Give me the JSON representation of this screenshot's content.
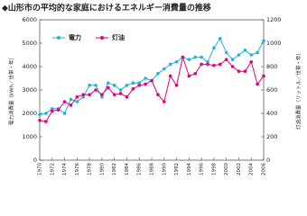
{
  "chart_data": {
    "type": "line",
    "title": "◆山形市の平均的な家庭におけるエネルギー消費量の推移",
    "y_label": "電力消費量（kWh／世帯・年）",
    "y2_label": "灯油消費量（リットル／世帯・年）",
    "x": [
      1970,
      1971,
      1972,
      1973,
      1974,
      1975,
      1976,
      1977,
      1978,
      1979,
      1980,
      1981,
      1982,
      1983,
      1984,
      1985,
      1986,
      1987,
      1988,
      1989,
      1990,
      1991,
      1992,
      1993,
      1994,
      1995,
      1996,
      1997,
      1998,
      1999,
      2000,
      2001,
      2002,
      2003,
      2004,
      2005,
      2006
    ],
    "xlim": [
      1970,
      2006
    ],
    "xticks": [
      1970,
      1972,
      1974,
      1976,
      1978,
      1980,
      1982,
      1984,
      1986,
      1988,
      1990,
      1992,
      1994,
      1996,
      1998,
      2000,
      2002,
      2004,
      2006
    ],
    "ylim": [
      0,
      6000
    ],
    "yticks": [
      0,
      1000,
      2000,
      3000,
      4000,
      5000,
      6000
    ],
    "y2lim": [
      0,
      1200
    ],
    "y2ticks": [
      0,
      200,
      400,
      600,
      800,
      1000,
      1200
    ],
    "grid": false,
    "legend": "top-left",
    "series": [
      {
        "name": "電力",
        "color": "#22b2d6",
        "values": [
          1950,
          2000,
          2200,
          2200,
          2000,
          2600,
          2500,
          2700,
          3200,
          3200,
          2700,
          3300,
          3200,
          3000,
          3200,
          3300,
          3300,
          3500,
          3400,
          3700,
          3900,
          4100,
          4200,
          4400,
          4300,
          4400,
          4400,
          4200,
          4800,
          5200,
          4600,
          4300,
          4500,
          4700,
          4500,
          4600,
          5100
        ]
      },
      {
        "name": "灯油",
        "color": "#e3007e",
        "axis": "y2",
        "values": [
          340,
          330,
          420,
          430,
          500,
          470,
          540,
          560,
          560,
          600,
          560,
          620,
          560,
          570,
          540,
          610,
          640,
          650,
          680,
          560,
          500,
          720,
          640,
          880,
          720,
          740,
          820,
          820,
          810,
          820,
          860,
          800,
          760,
          760,
          840,
          650,
          720
        ]
      }
    ]
  }
}
